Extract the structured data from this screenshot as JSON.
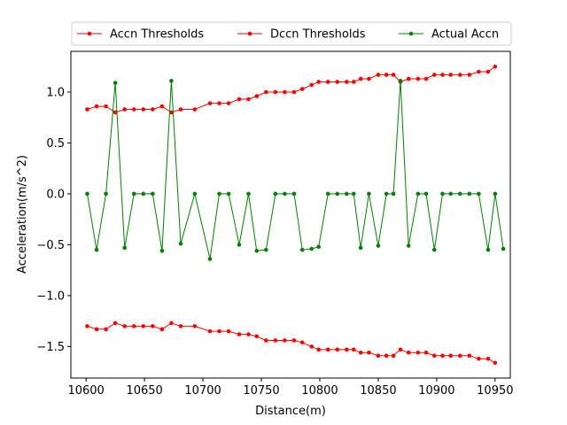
{
  "chart_data": {
    "type": "line",
    "title": "",
    "xlabel": "Distance(m)",
    "ylabel": "Acceleration(m/s^2)",
    "xlim": [
      10587,
      10963
    ],
    "ylim": [
      -1.81,
      1.4
    ],
    "xticks": [
      10600,
      10650,
      10700,
      10750,
      10800,
      10850,
      10900,
      10950
    ],
    "yticks": [
      -1.5,
      -1.0,
      -0.5,
      0.0,
      0.5,
      1.0
    ],
    "ytick_labels": [
      "−1.5",
      "−1.0",
      "−0.5",
      "0.0",
      "0.5",
      "1.0"
    ],
    "grid": false,
    "legend_position": "top",
    "series": [
      {
        "name": "Accn Thresholds",
        "color": "#ff0000",
        "points": [
          [
            10601,
            0.83
          ],
          [
            10609,
            0.86
          ],
          [
            10617,
            0.86
          ],
          [
            10625,
            0.8
          ],
          [
            10633,
            0.83
          ],
          [
            10641,
            0.83
          ],
          [
            10649,
            0.83
          ],
          [
            10657,
            0.83
          ],
          [
            10665,
            0.86
          ],
          [
            10673,
            0.8
          ],
          [
            10681,
            0.83
          ],
          [
            10693,
            0.83
          ],
          [
            10706,
            0.89
          ],
          [
            10714,
            0.89
          ],
          [
            10722,
            0.89
          ],
          [
            10731,
            0.93
          ],
          [
            10739,
            0.93
          ],
          [
            10746,
            0.96
          ],
          [
            10754,
            1.0
          ],
          [
            10762,
            1.0
          ],
          [
            10770,
            1.0
          ],
          [
            10778,
            1.0
          ],
          [
            10785,
            1.03
          ],
          [
            10793,
            1.07
          ],
          [
            10799,
            1.1
          ],
          [
            10807,
            1.1
          ],
          [
            10815,
            1.1
          ],
          [
            10823,
            1.1
          ],
          [
            10829,
            1.1
          ],
          [
            10835,
            1.13
          ],
          [
            10842,
            1.13
          ],
          [
            10850,
            1.17
          ],
          [
            10857,
            1.17
          ],
          [
            10863,
            1.17
          ],
          [
            10869,
            1.1
          ],
          [
            10876,
            1.13
          ],
          [
            10884,
            1.13
          ],
          [
            10891,
            1.13
          ],
          [
            10898,
            1.17
          ],
          [
            10905,
            1.17
          ],
          [
            10912,
            1.17
          ],
          [
            10920,
            1.17
          ],
          [
            10928,
            1.17
          ],
          [
            10936,
            1.2
          ],
          [
            10944,
            1.2
          ],
          [
            10950,
            1.25
          ]
        ]
      },
      {
        "name": "Dccn Thresholds",
        "color": "#ff0000",
        "points": [
          [
            10601,
            -1.3
          ],
          [
            10609,
            -1.33
          ],
          [
            10617,
            -1.33
          ],
          [
            10625,
            -1.27
          ],
          [
            10633,
            -1.3
          ],
          [
            10641,
            -1.3
          ],
          [
            10649,
            -1.3
          ],
          [
            10657,
            -1.3
          ],
          [
            10665,
            -1.33
          ],
          [
            10673,
            -1.27
          ],
          [
            10681,
            -1.3
          ],
          [
            10693,
            -1.3
          ],
          [
            10706,
            -1.35
          ],
          [
            10714,
            -1.35
          ],
          [
            10722,
            -1.35
          ],
          [
            10731,
            -1.38
          ],
          [
            10739,
            -1.38
          ],
          [
            10746,
            -1.4
          ],
          [
            10754,
            -1.44
          ],
          [
            10762,
            -1.44
          ],
          [
            10770,
            -1.44
          ],
          [
            10778,
            -1.44
          ],
          [
            10785,
            -1.46
          ],
          [
            10793,
            -1.5
          ],
          [
            10799,
            -1.53
          ],
          [
            10807,
            -1.53
          ],
          [
            10815,
            -1.53
          ],
          [
            10823,
            -1.53
          ],
          [
            10829,
            -1.53
          ],
          [
            10835,
            -1.56
          ],
          [
            10842,
            -1.56
          ],
          [
            10850,
            -1.59
          ],
          [
            10857,
            -1.59
          ],
          [
            10863,
            -1.59
          ],
          [
            10869,
            -1.53
          ],
          [
            10876,
            -1.56
          ],
          [
            10884,
            -1.56
          ],
          [
            10891,
            -1.56
          ],
          [
            10898,
            -1.59
          ],
          [
            10905,
            -1.59
          ],
          [
            10912,
            -1.59
          ],
          [
            10920,
            -1.59
          ],
          [
            10928,
            -1.59
          ],
          [
            10936,
            -1.62
          ],
          [
            10944,
            -1.62
          ],
          [
            10950,
            -1.66
          ]
        ]
      },
      {
        "name": "Actual Accn",
        "color": "#008000",
        "points": [
          [
            10601,
            0.0
          ],
          [
            10609,
            -0.55
          ],
          [
            10617,
            0.0
          ],
          [
            10625,
            1.09
          ],
          [
            10633,
            -0.53
          ],
          [
            10641,
            0.0
          ],
          [
            10649,
            0.0
          ],
          [
            10657,
            0.0
          ],
          [
            10665,
            -0.56
          ],
          [
            10673,
            1.11
          ],
          [
            10681,
            -0.49
          ],
          [
            10693,
            0.0
          ],
          [
            10706,
            -0.64
          ],
          [
            10714,
            0.0
          ],
          [
            10722,
            0.0
          ],
          [
            10731,
            -0.5
          ],
          [
            10739,
            0.0
          ],
          [
            10746,
            -0.56
          ],
          [
            10754,
            -0.55
          ],
          [
            10762,
            0.0
          ],
          [
            10770,
            0.0
          ],
          [
            10778,
            0.0
          ],
          [
            10785,
            -0.55
          ],
          [
            10793,
            -0.54
          ],
          [
            10799,
            -0.52
          ],
          [
            10807,
            0.0
          ],
          [
            10815,
            0.0
          ],
          [
            10823,
            0.0
          ],
          [
            10829,
            0.0
          ],
          [
            10835,
            -0.53
          ],
          [
            10842,
            0.0
          ],
          [
            10850,
            -0.51
          ],
          [
            10857,
            0.0
          ],
          [
            10863,
            0.0
          ],
          [
            10869,
            1.11
          ],
          [
            10876,
            -0.51
          ],
          [
            10884,
            0.0
          ],
          [
            10891,
            0.0
          ],
          [
            10898,
            -0.55
          ],
          [
            10905,
            0.0
          ],
          [
            10912,
            0.0
          ],
          [
            10920,
            0.0
          ],
          [
            10928,
            0.0
          ],
          [
            10936,
            0.0
          ],
          [
            10944,
            -0.55
          ],
          [
            10950,
            0.0
          ],
          [
            10957,
            -0.54
          ]
        ]
      }
    ]
  }
}
